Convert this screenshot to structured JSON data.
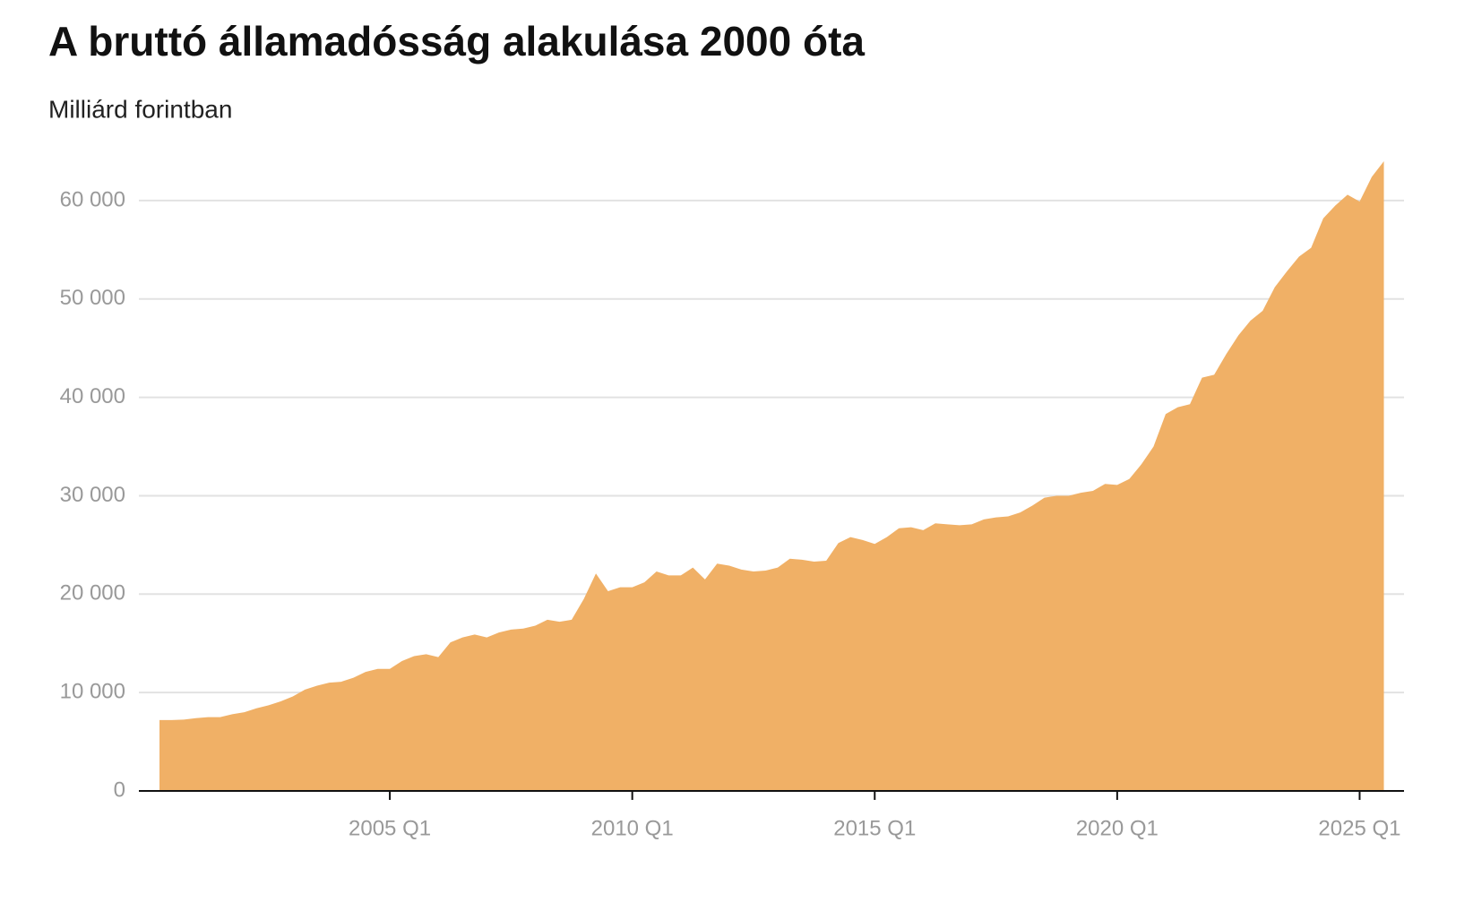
{
  "chart_data": {
    "type": "area",
    "title": "A bruttó államadósság alakulása 2000 óta",
    "subtitle": "Milliárd forintban",
    "categories": [
      null,
      null,
      null,
      null,
      null,
      null,
      null,
      null,
      null,
      null,
      null,
      null,
      null,
      null,
      null,
      null,
      null,
      null,
      null,
      "2005 Q1",
      null,
      null,
      null,
      null,
      null,
      null,
      null,
      null,
      null,
      null,
      null,
      null,
      null,
      null,
      null,
      null,
      null,
      null,
      null,
      "2010 Q1",
      null,
      null,
      null,
      null,
      null,
      null,
      null,
      null,
      null,
      null,
      null,
      null,
      null,
      null,
      null,
      null,
      null,
      null,
      null,
      "2015 Q1",
      null,
      null,
      null,
      null,
      null,
      null,
      null,
      null,
      null,
      null,
      null,
      null,
      null,
      null,
      null,
      null,
      null,
      null,
      null,
      "2020 Q1",
      null,
      null,
      null,
      null,
      null,
      null,
      null,
      null,
      null,
      null,
      null,
      null,
      null,
      null,
      null,
      null,
      null,
      null,
      null,
      "2025 Q1",
      null,
      null
    ],
    "values": [
      7200,
      7200,
      7250,
      7400,
      7500,
      7500,
      7800,
      8000,
      8400,
      8700,
      9100,
      9600,
      10300,
      10700,
      11000,
      11100,
      11500,
      12100,
      12400,
      12400,
      13200,
      13700,
      13900,
      13600,
      15100,
      15600,
      15900,
      15600,
      16100,
      16400,
      16500,
      16800,
      17400,
      17200,
      17400,
      19500,
      22100,
      20300,
      20700,
      20700,
      21200,
      22300,
      21900,
      21900,
      22700,
      21500,
      23100,
      22900,
      22500,
      22300,
      22400,
      22700,
      23600,
      23500,
      23300,
      23400,
      25200,
      25800,
      25500,
      25100,
      25800,
      26700,
      26800,
      26500,
      27200,
      27100,
      27000,
      27100,
      27600,
      27800,
      27900,
      28300,
      29000,
      29800,
      30000,
      30000,
      30300,
      30500,
      31200,
      31100,
      31700,
      33200,
      35000,
      38300,
      39000,
      39300,
      42000,
      42300,
      44400,
      46300,
      47800,
      48800,
      51200,
      52800,
      54300,
      55200,
      58200,
      59500,
      60600,
      59900,
      62400,
      64000
    ],
    "color": "#f0b066",
    "ylim": [
      0,
      65000
    ],
    "yticks": [
      0,
      {
        "value": 10000,
        "label": "10 000"
      },
      {
        "value": 20000,
        "label": "20 000"
      },
      {
        "value": 30000,
        "label": "30 000"
      },
      {
        "value": 40000,
        "label": "40 000"
      },
      {
        "value": 50000,
        "label": "50 000"
      },
      {
        "value": 60000,
        "label": "60 000"
      }
    ],
    "grid": true
  }
}
